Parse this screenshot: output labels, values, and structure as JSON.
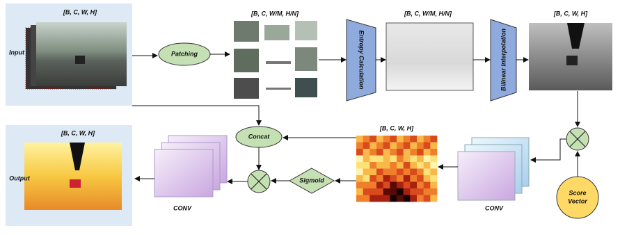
{
  "input": {
    "label": "Input",
    "shape": "[B, C, W, H]"
  },
  "patching": {
    "label": "Patching",
    "shape": "[B, C, W/M, H/N]"
  },
  "entropy": {
    "label": "Entropy Calculation",
    "shape": "[B, C, W/M, H/N]"
  },
  "interpolation": {
    "label": "Bilinear Interpolation",
    "shape": "[B, C, W, H]"
  },
  "heatmap": {
    "shape": "[B, C, W, H]"
  },
  "concat": {
    "label": "Concat"
  },
  "sigmoid": {
    "label": "Sigmoid"
  },
  "conv_right": {
    "label": "CONV"
  },
  "conv_left": {
    "label": "CONV"
  },
  "score": {
    "lines": [
      "Score",
      "Vector"
    ]
  },
  "output": {
    "label": "Output",
    "shape": "[B, C, W, H]"
  }
}
